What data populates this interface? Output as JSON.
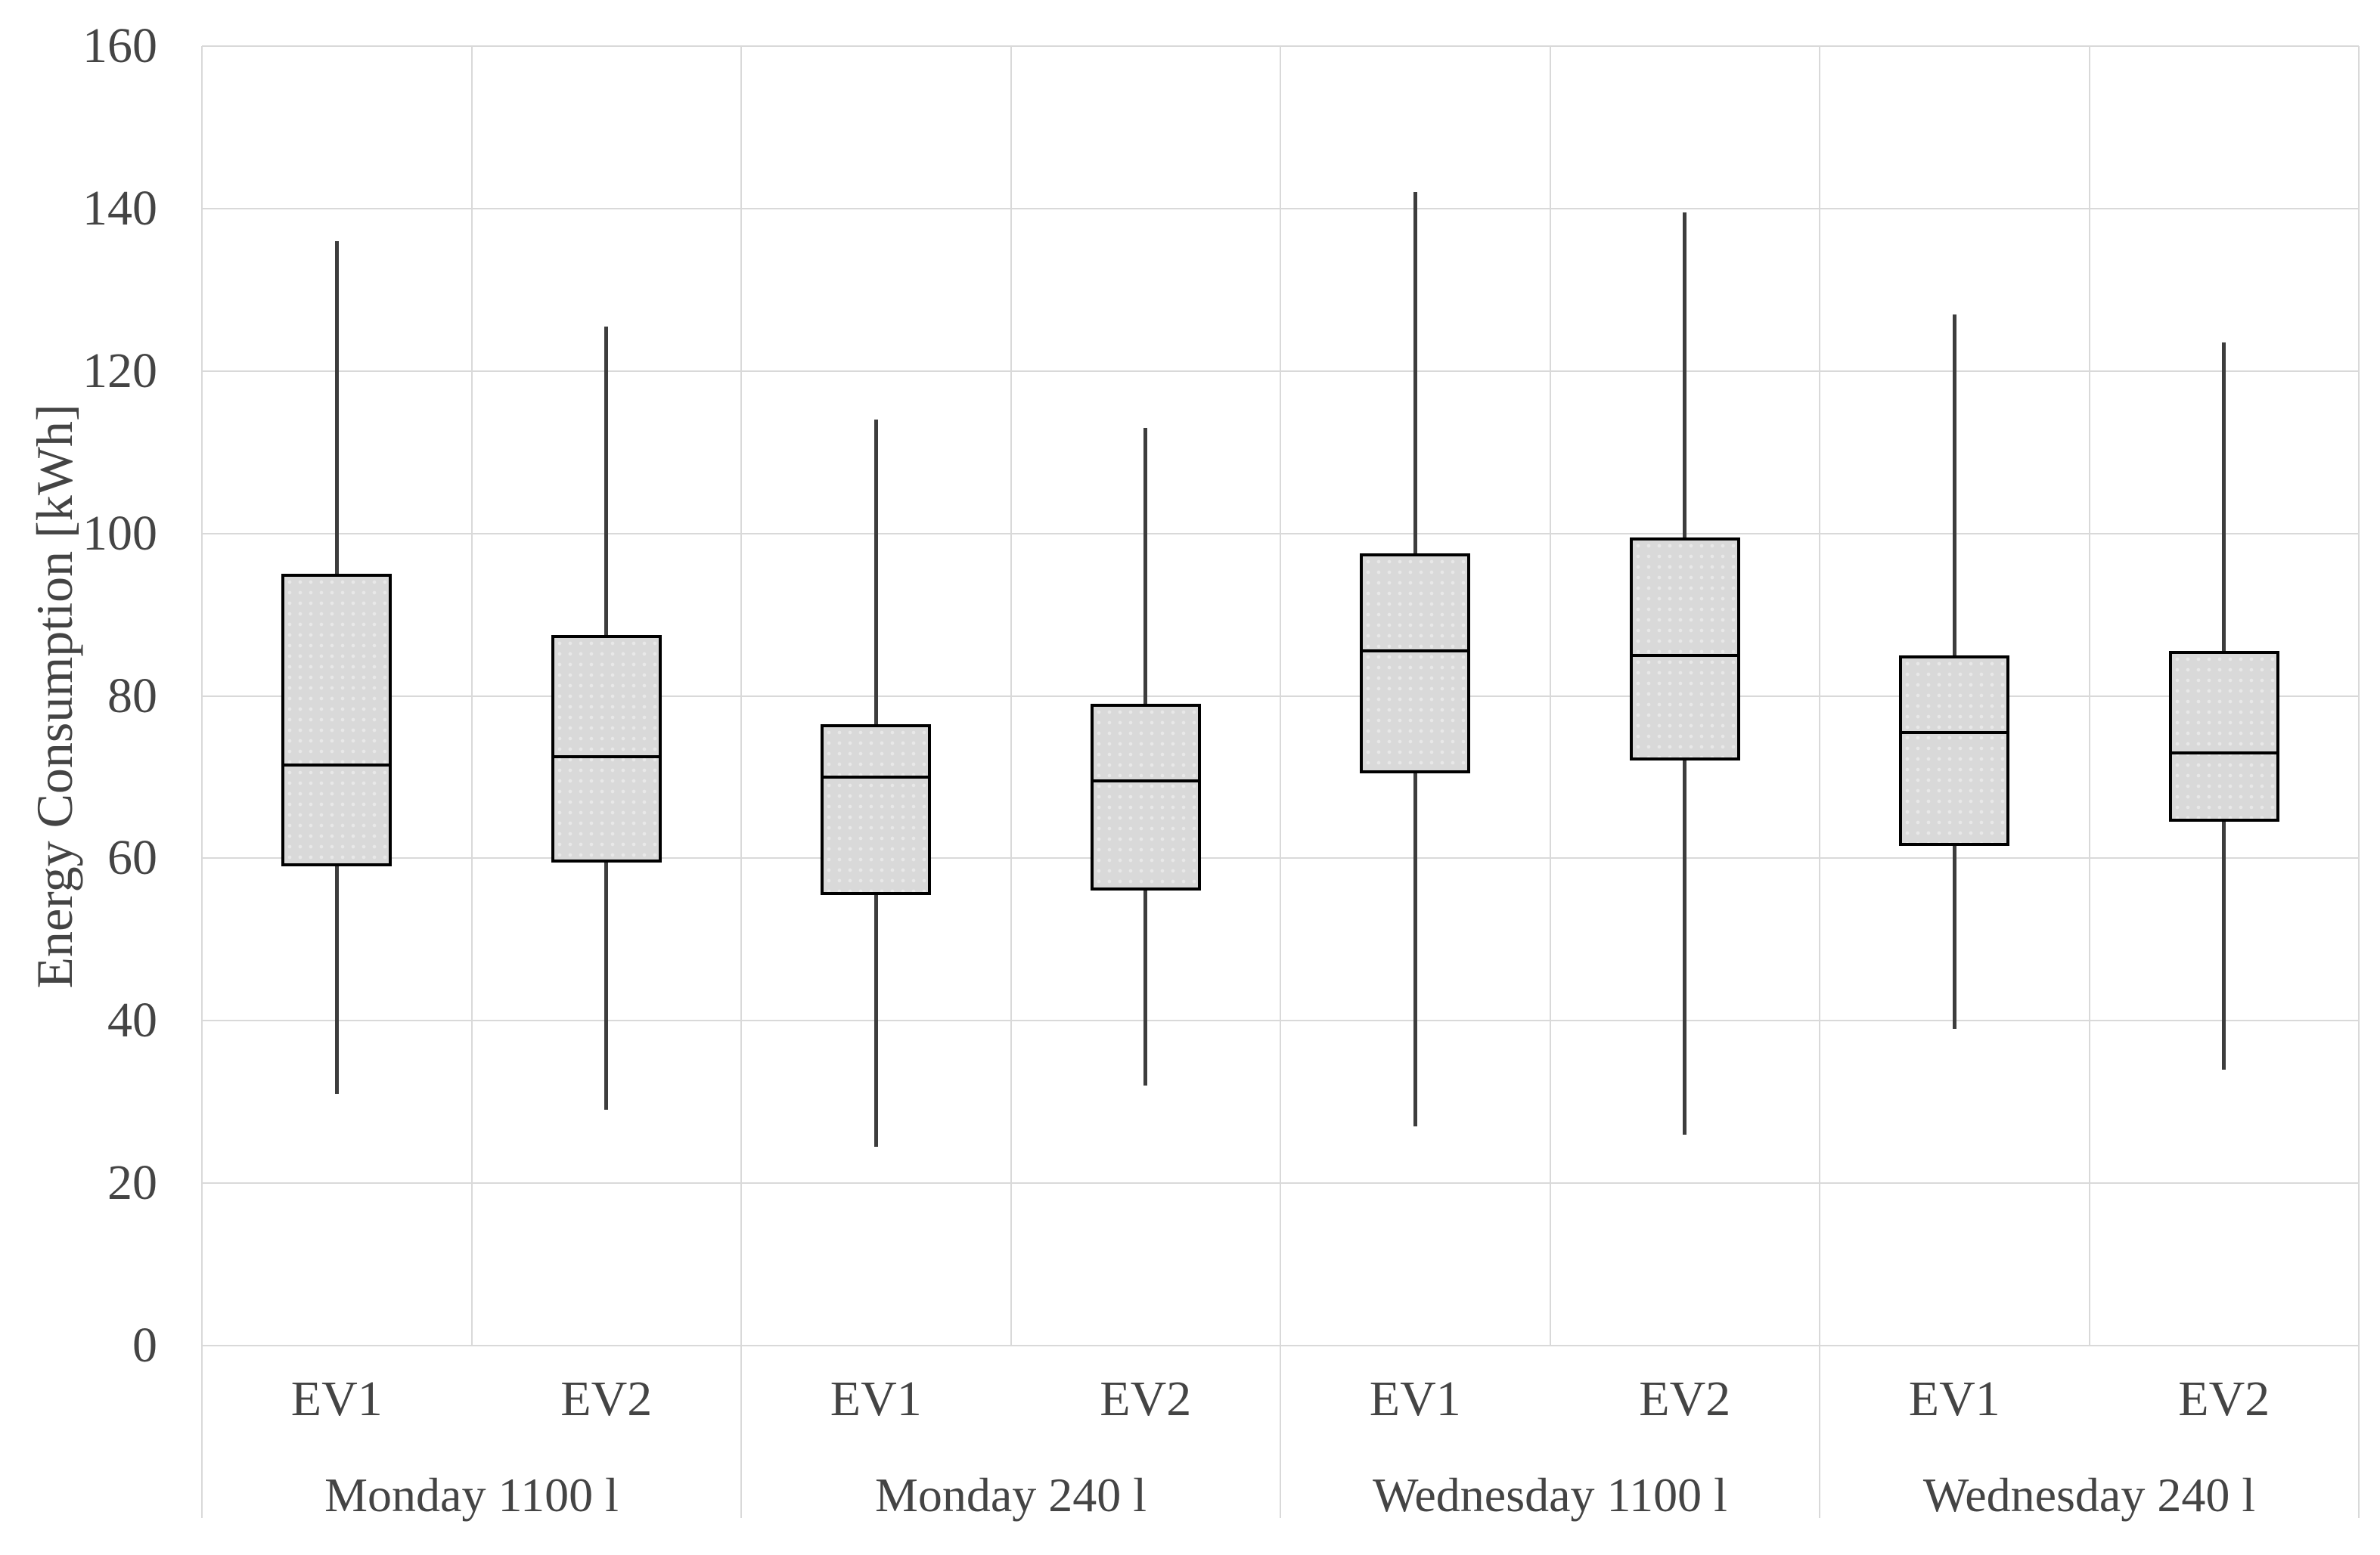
{
  "chart_data": {
    "type": "boxplot",
    "title": "",
    "ylabel": "Energy Consumption [kWh]",
    "xlabel": "",
    "ylim": [
      0,
      160
    ],
    "yticks": [
      0,
      20,
      40,
      60,
      80,
      100,
      120,
      140,
      160
    ],
    "grid": true,
    "legend_position": "none",
    "series_labels": [
      "EV1",
      "EV2"
    ],
    "groups": [
      {
        "label": "Monday 1100 l",
        "boxes": [
          {
            "series": "EV1",
            "whisker_low": 31,
            "q1": 59,
            "median": 71.5,
            "q3": 95,
            "whisker_high": 136
          },
          {
            "series": "EV2",
            "whisker_low": 29,
            "q1": 59.5,
            "median": 72.5,
            "q3": 87.5,
            "whisker_high": 125.5
          }
        ]
      },
      {
        "label": "Monday 240 l",
        "boxes": [
          {
            "series": "EV1",
            "whisker_low": 24.5,
            "q1": 55.5,
            "median": 70,
            "q3": 76.5,
            "whisker_high": 114
          },
          {
            "series": "EV2",
            "whisker_low": 32,
            "q1": 56,
            "median": 69.5,
            "q3": 79,
            "whisker_high": 113
          }
        ]
      },
      {
        "label": "Wednesday 1100 l",
        "boxes": [
          {
            "series": "EV1",
            "whisker_low": 27,
            "q1": 70.5,
            "median": 85.5,
            "q3": 97.5,
            "whisker_high": 142
          },
          {
            "series": "EV2",
            "whisker_low": 26,
            "q1": 72,
            "median": 85,
            "q3": 99.5,
            "whisker_high": 139.5
          }
        ]
      },
      {
        "label": "Wednesday 240 l",
        "boxes": [
          {
            "series": "EV1",
            "whisker_low": 39,
            "q1": 61.5,
            "median": 75.5,
            "q3": 85,
            "whisker_high": 127
          },
          {
            "series": "EV2",
            "whisker_low": 34,
            "q1": 64.5,
            "median": 73,
            "q3": 85.5,
            "whisker_high": 123.5
          }
        ]
      }
    ],
    "colors": {
      "box_fill": "#d9d9d9",
      "box_border": "#000000",
      "median_line": "#000000",
      "whisker": "#3d3d3d",
      "gridline": "#d9d9d9",
      "text": "#444444",
      "background": "#ffffff"
    }
  }
}
